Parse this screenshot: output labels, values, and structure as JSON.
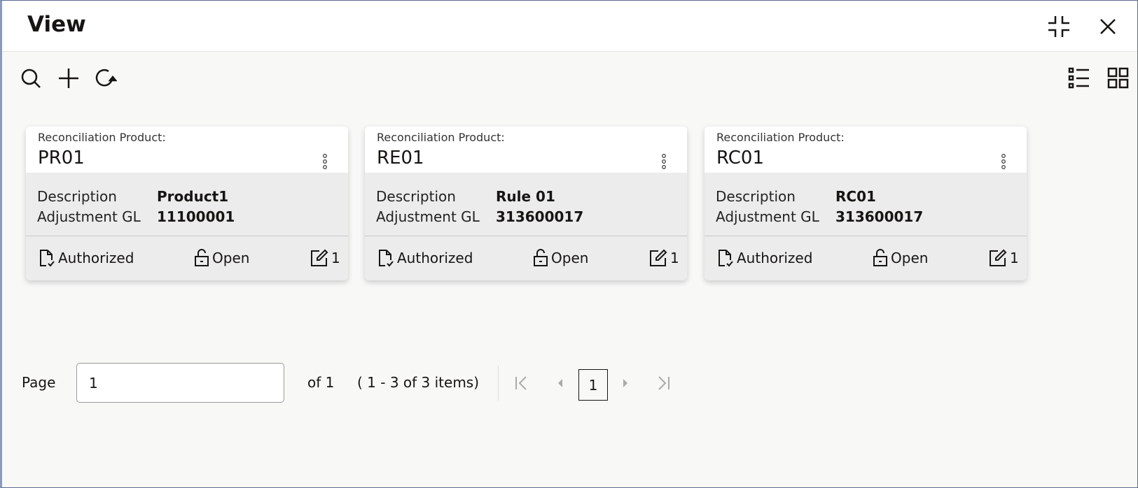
{
  "header": {
    "title": "View",
    "icons": [
      "collapse-icon",
      "close-icon"
    ]
  },
  "toolbar": {
    "icons": [
      "search-icon",
      "add-icon",
      "refresh-icon",
      "list-view-icon",
      "grid-view-icon"
    ]
  },
  "cards": [
    {
      "label": "Reconciliation Product:",
      "code": "PR01",
      "fields": [
        {
          "key": "Description",
          "value": "Product1"
        },
        {
          "key": "Adjustment GL",
          "value": "11100001"
        }
      ],
      "status": "Authorized",
      "lock": "Open",
      "edits": "1"
    },
    {
      "label": "Reconciliation Product:",
      "code": "RE01",
      "fields": [
        {
          "key": "Description",
          "value": "Rule 01"
        },
        {
          "key": "Adjustment GL",
          "value": "313600017"
        }
      ],
      "status": "Authorized",
      "lock": "Open",
      "edits": "1"
    },
    {
      "label": "Reconciliation Product:",
      "code": "RC01",
      "fields": [
        {
          "key": "Description",
          "value": "RC01"
        },
        {
          "key": "Adjustment GL",
          "value": "313600017"
        }
      ],
      "status": "Authorized",
      "lock": "Open",
      "edits": "1"
    }
  ],
  "pagination": {
    "page_label": "Page",
    "page_value": "1",
    "of_label": "of 1",
    "items_label": "( 1 - 3 of 3 items)",
    "current_page": "1"
  }
}
